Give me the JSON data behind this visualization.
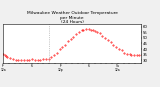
{
  "title": "Milwaukee Weather Outdoor Temperature\nper Minute\n(24 Hours)",
  "title_fontsize": 3.2,
  "background_color": "#f0f0f0",
  "plot_bg_color": "#ffffff",
  "line_color": "#ff0000",
  "marker": ".",
  "markersize": 0.8,
  "linestyle": "None",
  "ytick_fontsize": 2.8,
  "xtick_fontsize": 2.2,
  "ylim": [
    28,
    62
  ],
  "yticks": [
    30,
    35,
    40,
    45,
    50,
    55,
    60
  ],
  "vline_x": 0.33,
  "vline_color": "#999999",
  "vline_style": "dotted",
  "x_values": [
    0.0,
    0.01,
    0.02,
    0.03,
    0.05,
    0.07,
    0.09,
    0.11,
    0.13,
    0.15,
    0.17,
    0.19,
    0.21,
    0.23,
    0.25,
    0.27,
    0.29,
    0.31,
    0.33,
    0.35,
    0.37,
    0.39,
    0.41,
    0.43,
    0.45,
    0.47,
    0.49,
    0.51,
    0.53,
    0.55,
    0.57,
    0.58,
    0.6,
    0.62,
    0.64,
    0.65,
    0.67,
    0.68,
    0.7,
    0.72,
    0.74,
    0.76,
    0.78,
    0.8,
    0.82,
    0.84,
    0.86,
    0.88,
    0.9,
    0.92,
    0.93,
    0.95,
    0.97,
    0.99
  ],
  "y_values": [
    36,
    35,
    34,
    33,
    32,
    31,
    30,
    30,
    30,
    30,
    30,
    30,
    31,
    30,
    30,
    30,
    31,
    31,
    31,
    33,
    35,
    37,
    40,
    42,
    44,
    47,
    49,
    51,
    53,
    55,
    57,
    57,
    58,
    58,
    57,
    57,
    56,
    55,
    54,
    52,
    50,
    48,
    46,
    44,
    42,
    40,
    39,
    37,
    36,
    36,
    35,
    35,
    35,
    35
  ],
  "xtick_labels": [
    "Fr\n12a",
    "",
    "",
    "",
    "",
    "6",
    "",
    "",
    "",
    "",
    "Fr\n12p",
    "",
    "",
    "",
    "",
    "6",
    "",
    "",
    "",
    "",
    "Sa\n12a",
    "",
    "",
    "",
    ""
  ],
  "xtick_positions": [
    0.0,
    0.042,
    0.083,
    0.125,
    0.167,
    0.208,
    0.25,
    0.292,
    0.333,
    0.375,
    0.417,
    0.458,
    0.5,
    0.542,
    0.583,
    0.625,
    0.667,
    0.708,
    0.75,
    0.792,
    0.833,
    0.875,
    0.917,
    0.958,
    1.0
  ]
}
